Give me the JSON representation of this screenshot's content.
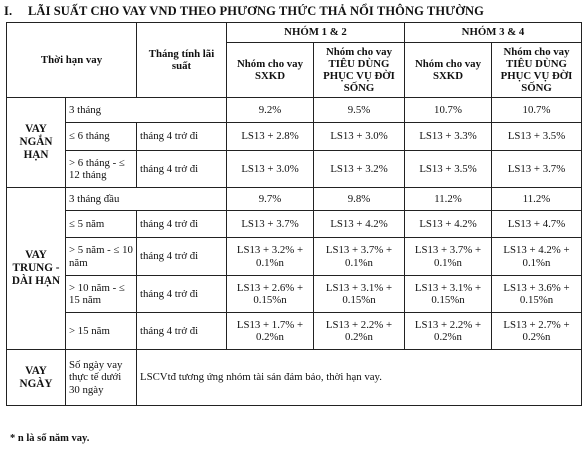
{
  "title": {
    "number": "I.",
    "text": "LÃI SUẤT CHO VAY VND THEO PHƯƠNG THỨC THẢ NỔI THÔNG THƯỜNG"
  },
  "header": {
    "term": "Thời hạn vay",
    "month_from": "Tháng tính lãi suất",
    "group12": "NHÓM 1 & 2",
    "group34": "NHÓM 3 & 4",
    "sxkd": "Nhóm cho vay SXKD",
    "consumer": "Nhóm cho vay TIÊU DÙNG PHỤC VỤ ĐỜI SỐNG"
  },
  "groups": {
    "short": "VAY NGẮN HẠN",
    "medium_long": "VAY TRUNG - DÀI HẠN",
    "days": "VAY NGÀY"
  },
  "rows": [
    {
      "term": "3 tháng",
      "month": "",
      "v": [
        "9.2%",
        "9.5%",
        "10.7%",
        "10.7%"
      ]
    },
    {
      "term": "≤ 6 tháng",
      "month": "tháng 4 trở đi",
      "v": [
        "LS13 + 2.8%",
        "LS13 + 3.0%",
        "LS13 + 3.3%",
        "LS13 + 3.5%"
      ]
    },
    {
      "term": "> 6 tháng - ≤ 12 tháng",
      "month": "tháng 4 trở đi",
      "v": [
        "LS13 + 3.0%",
        "LS13 + 3.2%",
        "LS13 + 3.5%",
        "LS13 + 3.7%"
      ]
    },
    {
      "term": "3 tháng đầu",
      "month": "",
      "v": [
        "9.7%",
        "9.8%",
        "11.2%",
        "11.2%"
      ]
    },
    {
      "term": "≤ 5 năm",
      "month": "tháng 4 trở đi",
      "v": [
        "LS13 + 3.7%",
        "LS13 + 4.2%",
        "LS13 + 4.2%",
        "LS13 + 4.7%"
      ]
    },
    {
      "term": "> 5 năm - ≤ 10 năm",
      "month": "tháng 4 trở đi",
      "v": [
        "LS13 + 3.2% + 0.1%n",
        "LS13 + 3.7% + 0.1%n",
        "LS13 + 3.7% + 0.1%n",
        "LS13 + 4.2% + 0.1%n"
      ]
    },
    {
      "term": "> 10 năm - ≤ 15 năm",
      "month": "tháng 4 trở đi",
      "v": [
        "LS13 + 2.6% + 0.15%n",
        "LS13 + 3.1% + 0.15%n",
        "LS13 + 3.1% + 0.15%n",
        "LS13 + 3.6% + 0.15%n"
      ]
    },
    {
      "term": "> 15 năm",
      "month": "tháng 4 trở đi",
      "v": [
        "LS13 + 1.7% + 0.2%n",
        "LS13 + 2.2% + 0.2%n",
        "LS13 + 2.2% + 0.2%n",
        "LS13 + 2.7% + 0.2%n"
      ]
    }
  ],
  "days_row": {
    "term": "Số ngày vay thực tế dưới 30 ngày",
    "note": "LSCVtđ tương ứng nhóm tài sản đảm bảo, thời hạn vay."
  },
  "footnote": "* n là số năm vay."
}
